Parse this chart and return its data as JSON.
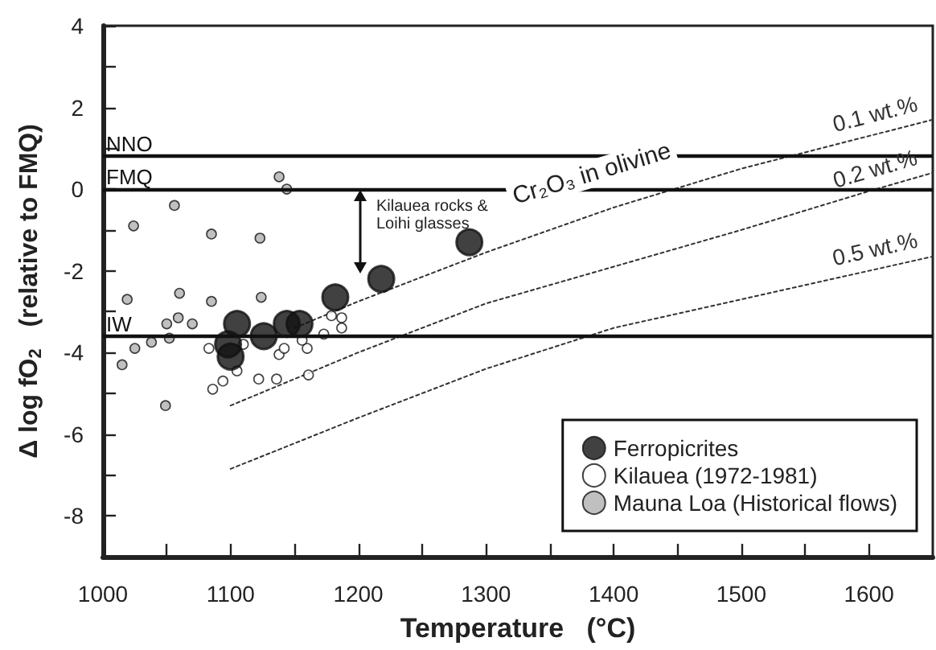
{
  "chart_data": {
    "type": "scatter",
    "xlabel": "Temperature   (°C)",
    "ylabel": "Δ log fO$_{2}$   (relative to FMQ)",
    "xlim": [
      1000,
      1650
    ],
    "ylim": [
      -9,
      4
    ],
    "xticks": [
      1000,
      {
        "value": 1050,
        "label": null
      },
      1100,
      {
        "value": 1150,
        "label": null
      },
      1200,
      {
        "value": 1250,
        "label": null
      },
      1300,
      {
        "value": 1350,
        "label": null
      },
      1400,
      {
        "value": 1450,
        "label": null
      },
      1500,
      {
        "value": 1550,
        "label": null
      },
      1600
    ],
    "yticks": [
      {
        "value": -9,
        "label": null
      },
      -8,
      {
        "value": -7,
        "label": null
      },
      -6,
      {
        "value": -5,
        "label": null
      },
      -4,
      {
        "value": -3,
        "label": null
      },
      -2,
      {
        "value": -1,
        "label": null
      },
      0,
      {
        "value": 1,
        "label": null
      },
      2,
      {
        "value": 3,
        "label": null
      },
      4
    ],
    "grid": false,
    "legend": "bottom right",
    "marker": "circle",
    "series": [
      {
        "name": "Ferropicrites",
        "color": "#111111",
        "x": [
          1100,
          1098,
          1105,
          1126,
          1144,
          1154,
          1182,
          1218,
          1287
        ],
        "values": [
          -4.1,
          -3.8,
          -3.3,
          -3.6,
          -3.3,
          -3.3,
          -2.65,
          -2.2,
          -1.3
        ]
      },
      {
        "name": "Kilauea (1972-1981)",
        "color": "#ffffff",
        "x": [
          1094,
          1086,
          1105,
          1083,
          1122,
          1136,
          1138,
          1142,
          1161,
          1160,
          1156,
          1173,
          1179,
          1187,
          1187,
          1110
        ],
        "values": [
          -4.7,
          -4.9,
          -4.45,
          -3.9,
          -4.65,
          -4.65,
          -4.05,
          -3.9,
          -4.55,
          -3.9,
          -3.7,
          -3.55,
          -3.1,
          -3.15,
          -3.4,
          -3.8
        ]
      },
      {
        "name": "Mauna Loa (Historical flows)",
        "color": "#b0b0b0",
        "x": [
          1138,
          1144,
          1056,
          1024,
          1085,
          1123,
          1019,
          1060,
          1085,
          1124,
          1015,
          1025,
          1038,
          1052,
          1050,
          1059,
          1070,
          1049
        ],
        "values": [
          0.3,
          0.0,
          -0.4,
          -0.9,
          -1.1,
          -1.2,
          -2.7,
          -2.55,
          -2.75,
          -2.65,
          -4.3,
          -3.9,
          -3.75,
          -3.65,
          -3.3,
          -3.15,
          -3.3,
          -5.3
        ]
      },
      {
        "type": "line",
        "name": "0.1 wt.%",
        "color": "#333333",
        "line_style": "dotted",
        "marker": "none",
        "x": [
          1150,
          1200,
          1300,
          1400,
          1500,
          1600,
          1650
        ],
        "values": [
          -3.4,
          -2.75,
          -1.55,
          -0.45,
          0.5,
          1.3,
          1.7
        ]
      },
      {
        "type": "line",
        "name": "0.2 wt.%",
        "color": "#333333",
        "line_style": "dotted",
        "marker": "none",
        "x": [
          1100,
          1200,
          1300,
          1400,
          1500,
          1600,
          1650
        ],
        "values": [
          -5.3,
          -4.0,
          -2.8,
          -1.9,
          -1.0,
          -0.05,
          0.4
        ]
      },
      {
        "type": "line",
        "name": "0.5 wt.%",
        "color": "#333333",
        "line_style": "dotted",
        "marker": "none",
        "x": [
          1100,
          1200,
          1300,
          1400,
          1500,
          1600,
          1650
        ],
        "values": [
          -6.85,
          -5.6,
          -4.4,
          -3.4,
          -2.7,
          -2.0,
          -1.65
        ]
      }
    ],
    "ref_lines": [
      {
        "axis": "y",
        "value": 0.8,
        "label": "NNO",
        "color": "#111111"
      },
      {
        "axis": "y",
        "value": 0,
        "label": "FMQ",
        "color": "#111111"
      },
      {
        "axis": "y",
        "value": -3.6,
        "label": "IW",
        "color": "#111111"
      }
    ],
    "annotations": [
      "Cr₂O₃ in olivine",
      "Kilauea rocks &\nLoihi glasses"
    ]
  }
}
